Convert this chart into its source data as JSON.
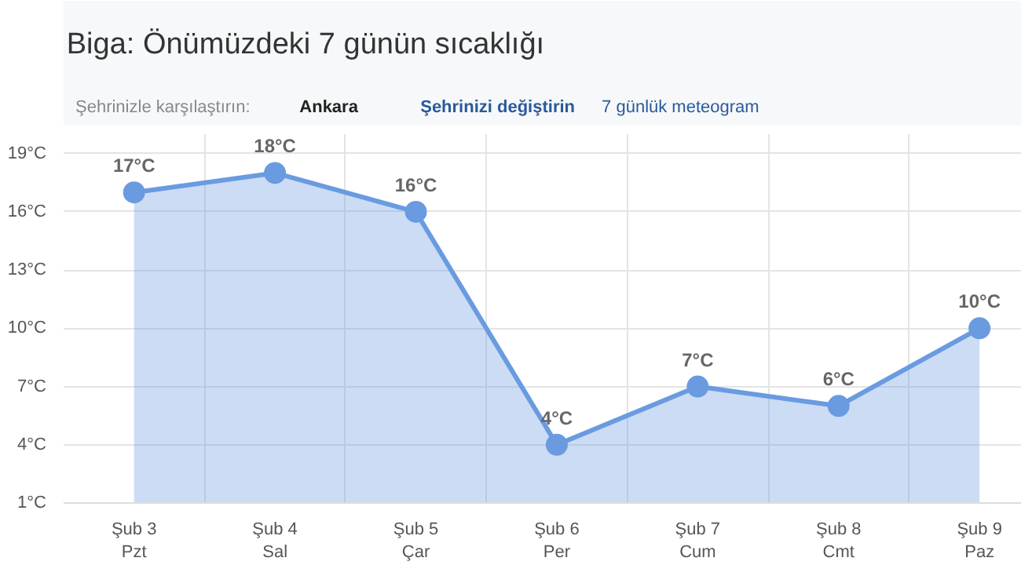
{
  "chart_data": {
    "type": "area",
    "title": "Biga: Önümüzdeki 7 günün sıcaklığı",
    "annotations": [
      "Şehrinizle karşılaştırın:",
      "Ankara",
      "Şehrinizi değiştirin",
      "7 günlük meteogram"
    ],
    "categories": [
      "Şub 3\nPzt",
      "Şub 4\nSal",
      "Şub 5\nÇar",
      "Şub 6\nPer",
      "Şub 7\nCum",
      "Şub 8\nCmt",
      "Şub 9\nPaz"
    ],
    "values": [
      17,
      18,
      16,
      4,
      7,
      6,
      10
    ],
    "value_labels": [
      "17°C",
      "18°C",
      "16°C",
      "4°C",
      "7°C",
      "6°C",
      "10°C"
    ],
    "color": "#6a9be0",
    "ylim": [
      1,
      20
    ],
    "yticks": [
      {
        "value": 1,
        "label": "1°C"
      },
      {
        "value": 4,
        "label": "4°C"
      },
      {
        "value": 7,
        "label": "7°C"
      },
      {
        "value": 10,
        "label": "10°C"
      },
      {
        "value": 13,
        "label": "13°C"
      },
      {
        "value": 16,
        "label": "16°C"
      },
      {
        "value": 19,
        "label": "19°C"
      }
    ],
    "grid": true,
    "marker": "circle",
    "line_style": "solid"
  }
}
